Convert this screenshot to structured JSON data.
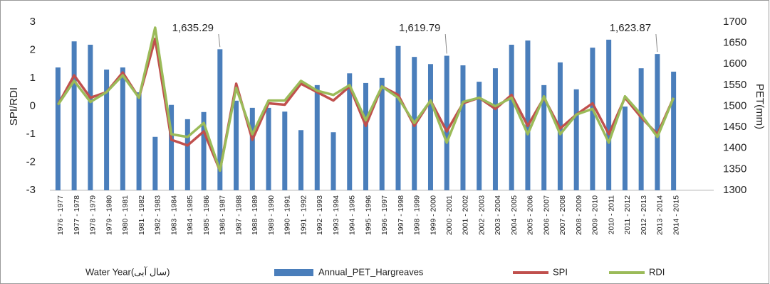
{
  "chart_data": {
    "type": "bar",
    "y_label": "SPI/RDI",
    "y2_label": "PET(mm)",
    "x_label": "Water Year(سال آبی)",
    "categories": [
      "1976 - 1977",
      "1977 - 1978",
      "1978 - 1979",
      "1979 - 1980",
      "1980 - 1981",
      "1981 - 1982",
      "1982 - 1983",
      "1983 - 1984",
      "1984 - 1985",
      "1985 - 1986",
      "1986 - 1987",
      "1987 - 1988",
      "1988 - 1989",
      "1989 - 1990",
      "1990 - 1991",
      "1991 - 1992",
      "1992 - 1993",
      "1993 - 1994",
      "1994 - 1995",
      "1995 - 1996",
      "1996 - 1997",
      "1997 - 1998",
      "1998 - 1999",
      "1999 - 2000",
      "2000 - 2001",
      "2001 - 2002",
      "2002 - 2003",
      "2003 - 2004",
      "2004 - 2005",
      "2005 - 2006",
      "2006 - 2007",
      "2007 - 2008",
      "2008 - 2009",
      "2009 - 2010",
      "2010 - 2011",
      "2011 - 2012",
      "2012 - 2013",
      "2013 - 2014",
      "2014 - 2015"
    ],
    "ylim": [
      -3,
      3
    ],
    "yticks": [
      -3,
      -2,
      -1,
      0,
      1,
      2,
      3
    ],
    "y2lim": [
      1300,
      1700
    ],
    "y2ticks": [
      1300,
      1350,
      1400,
      1450,
      1500,
      1550,
      1600,
      1650,
      1700
    ],
    "series": [
      {
        "name": "Annual_PET_Hargreaves",
        "type": "bar",
        "axis": "y2",
        "color": "#4a7ebb",
        "values": [
          1592,
          1654,
          1646,
          1587,
          1592,
          1533,
          1427,
          1503,
          1469,
          1486,
          1635.29,
          1513,
          1496,
          1496,
          1487,
          1443,
          1550,
          1438,
          1578,
          1555,
          1567,
          1643,
          1617,
          1600,
          1619.79,
          1597,
          1558,
          1590,
          1646,
          1656,
          1550,
          1604,
          1540,
          1639,
          1658,
          1499,
          1590,
          1623.87,
          1582
        ],
        "value_labels": [
          null,
          null,
          null,
          null,
          null,
          null,
          null,
          null,
          null,
          null,
          "1,635.29",
          null,
          null,
          null,
          null,
          null,
          null,
          null,
          null,
          null,
          null,
          null,
          null,
          null,
          "1,619.79",
          null,
          null,
          null,
          null,
          null,
          null,
          null,
          null,
          null,
          null,
          null,
          null,
          "1,623.87",
          null
        ]
      },
      {
        "name": "SPI",
        "type": "line",
        "color": "#c0504d",
        "values": [
          0.05,
          1.1,
          0.3,
          0.5,
          1.2,
          0.3,
          2.4,
          -1.2,
          -1.4,
          -0.9,
          -2.3,
          0.8,
          -1.2,
          0.1,
          0.05,
          0.8,
          0.5,
          0.2,
          0.7,
          -0.7,
          0.7,
          0.4,
          -0.7,
          0.2,
          -0.9,
          0.1,
          0.3,
          -0.1,
          0.4,
          -0.7,
          0.3,
          -0.8,
          -0.3,
          0.1,
          -1.0,
          0.3,
          -0.4,
          -1.0,
          0.3
        ]
      },
      {
        "name": "RDI",
        "type": "line",
        "color": "#9bbb59",
        "values": [
          0.05,
          0.9,
          0.15,
          0.5,
          1.1,
          0.3,
          2.8,
          -1.0,
          -1.1,
          -0.6,
          -2.3,
          0.65,
          -1.0,
          0.2,
          0.2,
          0.9,
          0.55,
          0.4,
          0.75,
          -0.5,
          0.7,
          0.3,
          -0.6,
          0.2,
          -1.3,
          0.15,
          0.3,
          0.0,
          0.3,
          -1.0,
          0.35,
          -1.0,
          -0.3,
          -0.1,
          -1.3,
          0.35,
          -0.3,
          -1.1,
          0.3
        ]
      }
    ]
  }
}
